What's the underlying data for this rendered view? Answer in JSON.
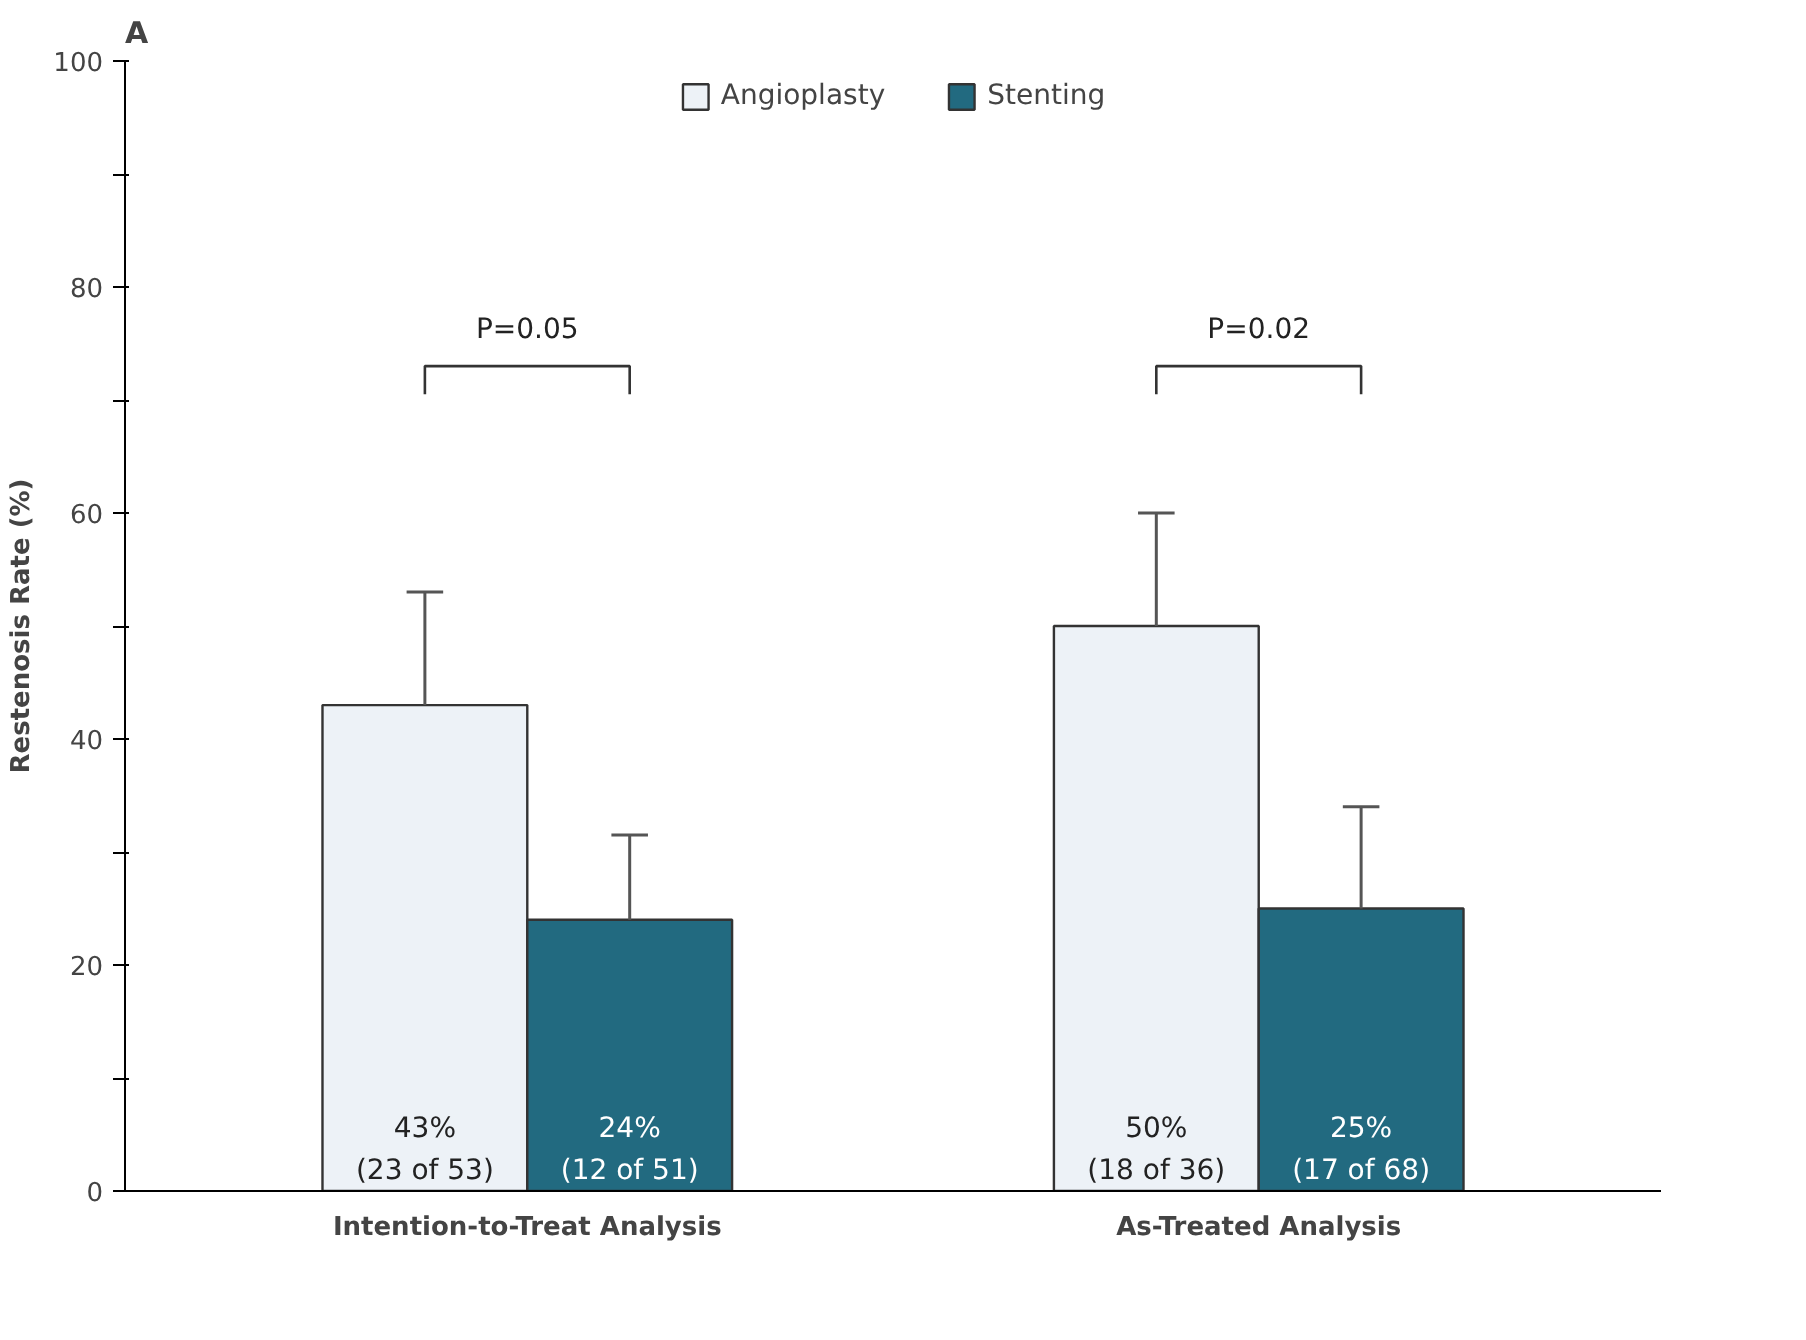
{
  "chart_data": {
    "type": "bar",
    "title": "A",
    "ylabel": "Restenosis Rate (%)",
    "categories": [
      "Intention-to-Treat Analysis",
      "As-Treated Analysis"
    ],
    "series": [
      {
        "name": "Angioplasty",
        "color": "#edf2f7",
        "values": [
          43,
          50
        ],
        "errors": [
          [
            43,
            53
          ],
          [
            50,
            60
          ]
        ],
        "value_labels": [
          "43%\n(23 of 53)",
          "50%\n(18 of 36)"
        ]
      },
      {
        "name": "Stenting",
        "color": "#226a80",
        "values": [
          24,
          25
        ],
        "errors": [
          [
            24,
            31.5
          ],
          [
            25,
            34
          ]
        ],
        "value_labels": [
          "24%\n(12 of 51)",
          "25%\n(17 of 68)"
        ]
      }
    ],
    "ylim": [
      0,
      100
    ],
    "yticks": [
      0,
      {
        "value": 10,
        "label": null
      },
      20,
      {
        "value": 30,
        "label": null
      },
      40,
      {
        "value": 50,
        "label": null
      },
      60,
      {
        "value": 70,
        "label": null
      },
      80,
      {
        "value": 90,
        "label": null
      },
      100
    ],
    "annotations": [
      "P=0.05",
      "P=0.02"
    ],
    "grid": false,
    "legend": "top"
  }
}
